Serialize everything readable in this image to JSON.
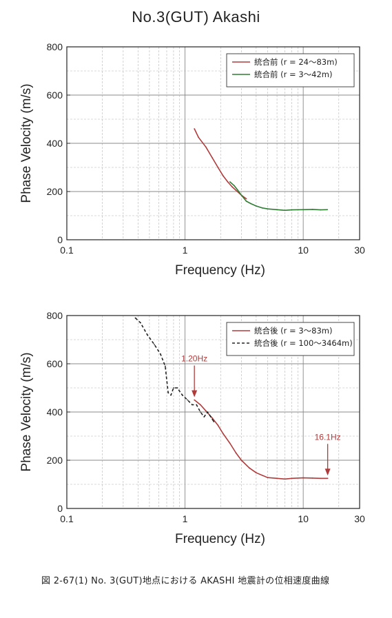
{
  "page": {
    "title": "No.3(GUT)  Akashi",
    "caption": "図 2-67(1)  No. 3(GUT)地点における AKASHI 地震計の位相速度曲線"
  },
  "chart_data": [
    {
      "type": "line",
      "xscale": "log",
      "xlim": [
        0.1,
        30
      ],
      "ylim": [
        0,
        800
      ],
      "xticks": [
        0.1,
        1,
        10,
        30
      ],
      "xtick_labels": [
        "0.1",
        "1",
        "10",
        "30"
      ],
      "yticks": [
        0,
        200,
        400,
        600,
        800
      ],
      "ytick_labels": [
        "0",
        "200",
        "400",
        "600",
        "800"
      ],
      "xlabel": "Frequency (Hz)",
      "ylabel": "Phase Velocity (m/s)",
      "grid": true,
      "legend_position": "top-right",
      "series": [
        {
          "name": "統合前 (r = 24〜83m)",
          "color": "#b03a3a",
          "dash": "solid",
          "x": [
            1.2,
            1.3,
            1.5,
            1.7,
            1.9,
            2.1,
            2.3,
            2.5,
            2.7,
            3.0,
            3.3
          ],
          "y": [
            460,
            425,
            385,
            340,
            300,
            265,
            240,
            220,
            205,
            185,
            170
          ]
        },
        {
          "name": "統合前 (r = 3〜42m)",
          "color": "#2e7d32",
          "dash": "solid",
          "x": [
            2.4,
            2.6,
            2.8,
            3.0,
            3.3,
            3.6,
            4.0,
            4.5,
            5.0,
            6.0,
            7.0,
            8.0,
            10.0,
            12.0,
            14.0,
            16.0
          ],
          "y": [
            240,
            225,
            205,
            185,
            160,
            150,
            140,
            132,
            128,
            125,
            122,
            124,
            125,
            126,
            124,
            125
          ]
        }
      ]
    },
    {
      "type": "line",
      "xscale": "log",
      "xlim": [
        0.1,
        30
      ],
      "ylim": [
        0,
        800
      ],
      "xticks": [
        0.1,
        1,
        10,
        30
      ],
      "xtick_labels": [
        "0.1",
        "1",
        "10",
        "30"
      ],
      "yticks": [
        0,
        200,
        400,
        600,
        800
      ],
      "ytick_labels": [
        "0",
        "200",
        "400",
        "600",
        "800"
      ],
      "xlabel": "Frequency (Hz)",
      "ylabel": "Phase Velocity (m/s)",
      "grid": true,
      "legend_position": "top-right",
      "series": [
        {
          "name": "統合後 (r = 3〜83m)",
          "color": "#b03a3a",
          "dash": "solid",
          "x": [
            1.2,
            1.35,
            1.5,
            1.7,
            1.9,
            2.1,
            2.4,
            2.7,
            3.0,
            3.5,
            4.0,
            5.0,
            6.0,
            7.0,
            8.0,
            10.0,
            12.0,
            14.0,
            16.1
          ],
          "y": [
            450,
            430,
            405,
            375,
            345,
            310,
            270,
            230,
            200,
            168,
            148,
            128,
            125,
            122,
            125,
            127,
            126,
            125,
            125
          ]
        },
        {
          "name": "統合後 (r = 100〜3464m)",
          "color": "#222222",
          "dash": "4,3",
          "x": [
            0.38,
            0.42,
            0.48,
            0.55,
            0.62,
            0.68,
            0.72,
            0.76,
            0.8,
            0.86,
            0.95,
            1.05,
            1.15,
            1.25,
            1.35,
            1.45,
            1.55,
            1.65,
            1.75
          ],
          "y": [
            790,
            770,
            720,
            680,
            640,
            590,
            480,
            470,
            500,
            500,
            470,
            450,
            430,
            430,
            400,
            380,
            400,
            380,
            360
          ]
        }
      ],
      "annotations": [
        {
          "text": "1.20Hz",
          "x": 1.2,
          "y": 450
        },
        {
          "text": "16.1Hz",
          "x": 16.1,
          "y": 125
        }
      ]
    }
  ]
}
